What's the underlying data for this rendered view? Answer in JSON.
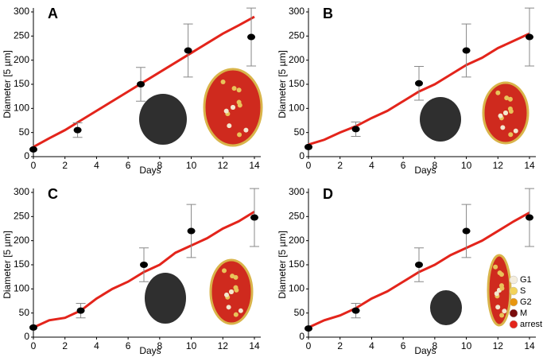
{
  "chart_data": [
    {
      "type": "line",
      "panel_label": "A",
      "xlabel": "Days",
      "ylabel": "Diameter [5 µm]",
      "xlim": [
        0,
        14
      ],
      "ylim": [
        0,
        300
      ],
      "xticks": [
        0,
        2,
        4,
        6,
        8,
        10,
        12,
        14
      ],
      "yticks": [
        0,
        50,
        100,
        150,
        200,
        250,
        300
      ],
      "series": [
        {
          "style": "line",
          "color": "#e3241b",
          "x": [
            0,
            1,
            2,
            3,
            4,
            5,
            6,
            7,
            8,
            9,
            10,
            11,
            12,
            13,
            14
          ],
          "values": [
            20,
            38,
            55,
            75,
            95,
            115,
            135,
            155,
            175,
            195,
            215,
            235,
            255,
            272,
            290
          ]
        },
        {
          "style": "points",
          "color": "#000000",
          "x": [
            0,
            2.8,
            6.8,
            9.8,
            13.8
          ],
          "values": [
            15,
            55,
            150,
            220,
            248
          ],
          "errors": [
            null,
            15,
            35,
            55,
            60
          ]
        }
      ]
    },
    {
      "type": "line",
      "panel_label": "B",
      "xlabel": "Days",
      "ylabel": "Diameter [5 µm]",
      "xlim": [
        0,
        14
      ],
      "ylim": [
        0,
        300
      ],
      "xticks": [
        0,
        2,
        4,
        6,
        8,
        10,
        12,
        14
      ],
      "yticks": [
        0,
        50,
        100,
        150,
        200,
        250,
        300
      ],
      "series": [
        {
          "style": "line",
          "color": "#e3241b",
          "x": [
            0,
            1,
            2,
            3,
            4,
            5,
            6,
            7,
            8,
            9,
            10,
            11,
            12,
            13,
            14
          ],
          "values": [
            25,
            35,
            50,
            63,
            80,
            95,
            115,
            135,
            150,
            170,
            190,
            205,
            225,
            240,
            255
          ]
        },
        {
          "style": "points",
          "color": "#000000",
          "x": [
            0,
            3,
            7,
            10,
            14
          ],
          "values": [
            20,
            57,
            152,
            220,
            248
          ],
          "errors": [
            null,
            15,
            35,
            55,
            60
          ]
        }
      ]
    },
    {
      "type": "line",
      "panel_label": "C",
      "xlabel": "Days",
      "ylabel": "Diameter [5 µm]",
      "xlim": [
        0,
        14
      ],
      "ylim": [
        0,
        300
      ],
      "xticks": [
        0,
        2,
        4,
        6,
        8,
        10,
        12,
        14
      ],
      "yticks": [
        0,
        50,
        100,
        150,
        200,
        250,
        300
      ],
      "series": [
        {
          "style": "line",
          "color": "#e3241b",
          "x": [
            0,
            1,
            2,
            3,
            4,
            5,
            6,
            7,
            8,
            9,
            10,
            11,
            12,
            13,
            14
          ],
          "values": [
            20,
            35,
            40,
            55,
            80,
            100,
            115,
            135,
            150,
            175,
            190,
            205,
            225,
            240,
            260
          ]
        },
        {
          "style": "points",
          "color": "#000000",
          "x": [
            0,
            3,
            7,
            10,
            14
          ],
          "values": [
            20,
            55,
            150,
            220,
            248
          ],
          "errors": [
            null,
            15,
            35,
            55,
            60
          ]
        }
      ]
    },
    {
      "type": "line",
      "panel_label": "D",
      "xlabel": "Days",
      "ylabel": "Diameter [5 µm]",
      "xlim": [
        0,
        14
      ],
      "ylim": [
        0,
        300
      ],
      "xticks": [
        0,
        2,
        4,
        6,
        8,
        10,
        12,
        14
      ],
      "yticks": [
        0,
        50,
        100,
        150,
        200,
        250,
        300
      ],
      "series": [
        {
          "style": "line",
          "color": "#e3241b",
          "x": [
            0,
            1,
            2,
            3,
            4,
            5,
            6,
            7,
            8,
            9,
            10,
            11,
            12,
            13,
            14
          ],
          "values": [
            20,
            35,
            45,
            60,
            80,
            95,
            115,
            135,
            150,
            170,
            185,
            200,
            220,
            240,
            258
          ]
        },
        {
          "style": "points",
          "color": "#000000",
          "x": [
            0,
            3,
            7,
            10,
            14
          ],
          "values": [
            18,
            55,
            150,
            220,
            248
          ],
          "errors": [
            null,
            15,
            35,
            55,
            60
          ]
        }
      ],
      "legend": [
        {
          "label": "G1",
          "color": "#f4eddc"
        },
        {
          "label": "S",
          "color": "#f2d35a"
        },
        {
          "label": "G2",
          "color": "#e8960e"
        },
        {
          "label": "M",
          "color": "#7a0c0c"
        },
        {
          "label": "arrest",
          "color": "#e3241b"
        }
      ]
    }
  ]
}
